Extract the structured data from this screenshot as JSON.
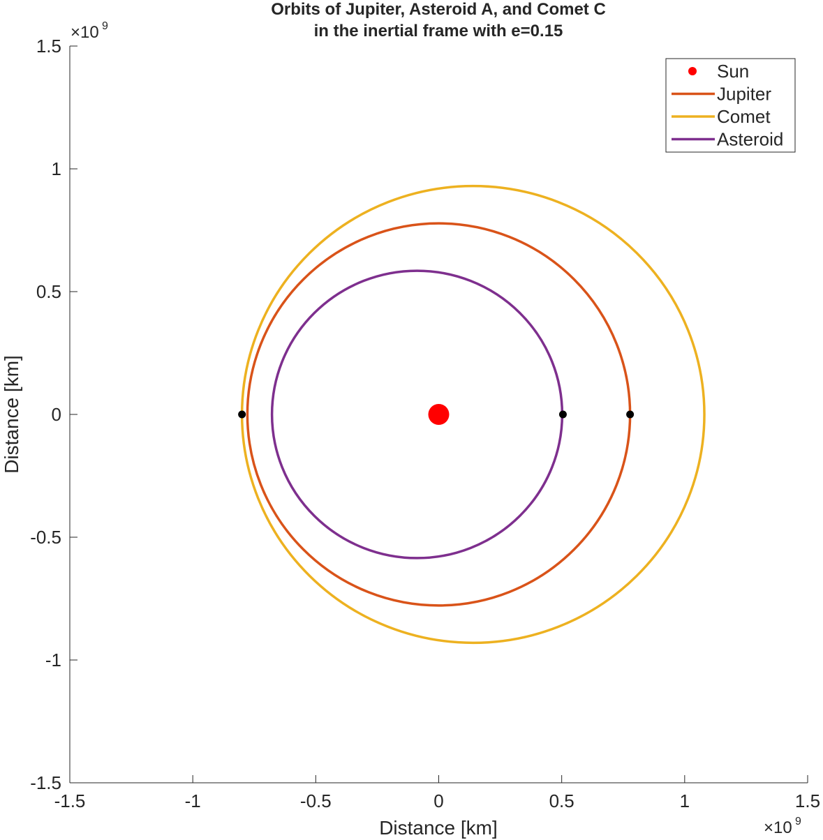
{
  "chart_data": {
    "type": "line",
    "title": [
      "Orbits of Jupiter, Asteroid A, and Comet C",
      "in the inertial frame with e=0.15"
    ],
    "xlabel": "Distance [km]",
    "ylabel": "Distance [km]",
    "xlim": [
      -1500000000.0,
      1500000000.0
    ],
    "ylim": [
      -1500000000.0,
      1500000000.0
    ],
    "x_ticks": [
      -1.5,
      -1,
      -0.5,
      0,
      0.5,
      1,
      1.5
    ],
    "y_ticks": [
      -1.5,
      -1,
      -0.5,
      0,
      0.5,
      1,
      1.5
    ],
    "x_tick_labels": [
      "-1.5",
      "-1",
      "-0.5",
      "0",
      "0.5",
      "1",
      "1.5"
    ],
    "y_tick_labels": [
      "-1.5",
      "-1",
      "-0.5",
      "0",
      "0.5",
      "1",
      "1.5"
    ],
    "x_exponent": "×10",
    "y_exponent": "×10",
    "exponent_power": "9",
    "grid": false,
    "legend_location": "top-right",
    "series": [
      {
        "name": "Sun",
        "kind": "point",
        "x": 0,
        "y": 0,
        "color": "#ff0000"
      },
      {
        "name": "Jupiter",
        "kind": "ellipse",
        "center": [
          0,
          0
        ],
        "semi_major": 778000000.0,
        "semi_minor": 778000000.0,
        "color": "#d95319"
      },
      {
        "name": "Comet",
        "kind": "ellipse",
        "center": [
          140000000.0,
          0
        ],
        "semi_major": 940000000.0,
        "semi_minor": 930000000.0,
        "color": "#edb120"
      },
      {
        "name": "Asteroid",
        "kind": "ellipse",
        "center": [
          -88000000.0,
          0
        ],
        "semi_major": 590000000.0,
        "semi_minor": 585000000.0,
        "color": "#7e2f8e"
      }
    ],
    "markers": [
      {
        "x": -800000000.0,
        "y": 0,
        "color": "#000000"
      },
      {
        "x": 505000000.0,
        "y": 0,
        "color": "#000000"
      },
      {
        "x": 778000000.0,
        "y": 0,
        "color": "#000000"
      }
    ]
  }
}
